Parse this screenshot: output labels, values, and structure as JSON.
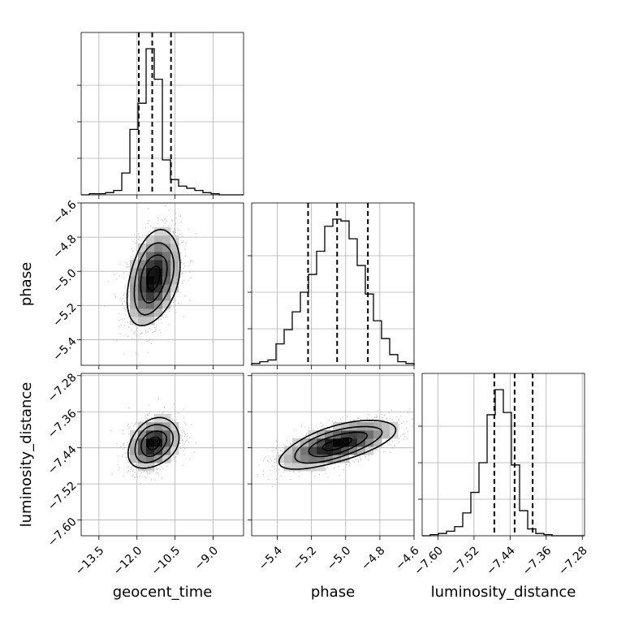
{
  "chart_data": {
    "type": "corner",
    "parameters": [
      "geocent_time",
      "phase",
      "luminosity_distance"
    ],
    "axis_labels": {
      "geocent_time": "geocent_time",
      "phase": "phase",
      "luminosity_distance": "luminosity_distance"
    },
    "ranges": {
      "geocent_time": [
        -14.2,
        -7.8
      ],
      "phase": [
        -5.55,
        -4.6
      ],
      "luminosity_distance": [
        -7.635,
        -7.275
      ]
    },
    "ticks": {
      "geocent_time": [
        {
          "v": -13.5,
          "label": "−13.5"
        },
        {
          "v": -12.0,
          "label": "−12.0"
        },
        {
          "v": -10.5,
          "label": "−10.5"
        },
        {
          "v": -9.0,
          "label": "−9.0"
        }
      ],
      "phase": [
        {
          "v": -5.4,
          "label": "−5.4"
        },
        {
          "v": -5.2,
          "label": "−5.2"
        },
        {
          "v": -5.0,
          "label": "−5.0"
        },
        {
          "v": -4.8,
          "label": "−4.8"
        },
        {
          "v": -4.6,
          "label": "−4.6"
        }
      ],
      "luminosity_distance": [
        {
          "v": -7.6,
          "label": "−7.60"
        },
        {
          "v": -7.52,
          "label": "−7.52"
        },
        {
          "v": -7.44,
          "label": "−7.44"
        },
        {
          "v": -7.36,
          "label": "−7.36"
        },
        {
          "v": -7.28,
          "label": "−7.28"
        }
      ]
    },
    "marginals": {
      "geocent_time": {
        "bin_start": -14.2,
        "bin_width": 0.32,
        "counts": [
          0,
          0.5,
          0.5,
          1,
          2,
          10,
          30,
          42,
          67,
          53,
          16,
          7,
          4,
          3,
          2,
          1,
          0.5,
          0,
          0,
          0
        ],
        "quantiles": [
          -11.93,
          -11.4,
          -10.66
        ]
      },
      "phase": {
        "bin_start": -5.55,
        "bin_width": 0.0475,
        "counts": [
          1,
          2,
          3,
          12,
          20,
          30,
          41,
          51,
          64,
          78,
          82,
          81,
          71,
          56,
          40,
          25,
          15,
          6,
          2,
          1
        ],
        "quantiles": [
          -5.22,
          -5.05,
          -4.87
        ]
      },
      "luminosity_distance": {
        "bin_start": -7.635,
        "bin_width": 0.018,
        "counts": [
          0,
          0.5,
          1,
          2,
          4,
          10,
          19,
          32,
          53,
          64,
          54,
          31,
          11,
          3,
          1,
          0.5,
          0,
          0,
          0,
          0
        ],
        "quantiles": [
          -7.475,
          -7.43,
          -7.39
        ]
      }
    },
    "pairs": [
      {
        "x": "geocent_time",
        "y": "phase",
        "mean": [
          -11.35,
          -5.04
        ],
        "sd": [
          0.52,
          0.14
        ],
        "rho": 0.35
      },
      {
        "x": "geocent_time",
        "y": "luminosity_distance",
        "mean": [
          -11.35,
          -7.43
        ],
        "sd": [
          0.5,
          0.028
        ],
        "rho": 0.3
      },
      {
        "x": "phase",
        "y": "luminosity_distance",
        "mean": [
          -5.05,
          -7.432
        ],
        "sd": [
          0.17,
          0.027
        ],
        "rho": 0.65
      }
    ],
    "contour_levels_sigma": [
      0.5,
      1,
      1.5,
      2
    ],
    "grid": true
  }
}
